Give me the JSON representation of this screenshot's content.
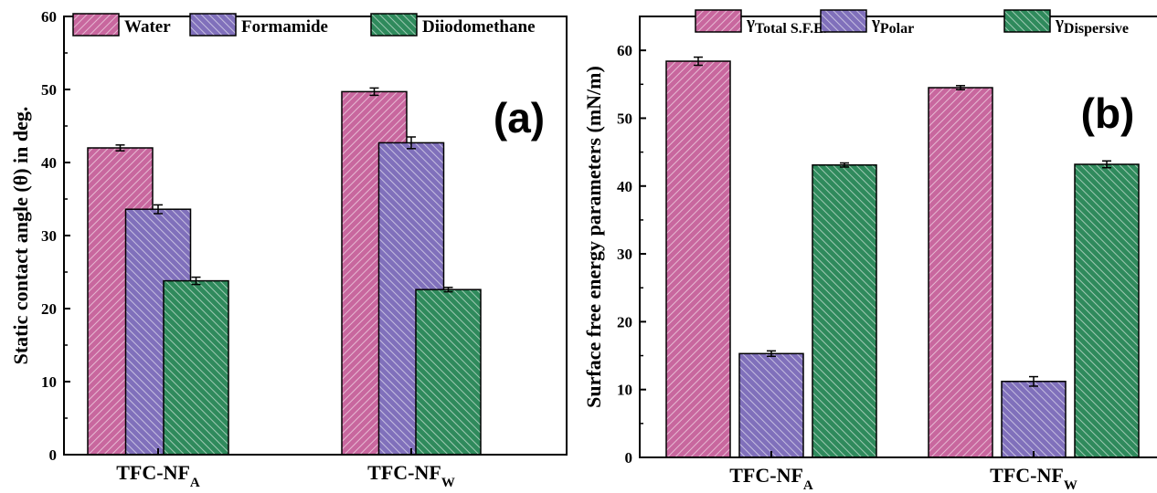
{
  "colors": {
    "water": "#c8679e",
    "formamide": "#8070bb",
    "diiodomethane": "#2f8a5c",
    "total": "#c8679e",
    "polar": "#8070bb",
    "dispersive": "#2f8a5c"
  },
  "chart_data": [
    {
      "type": "bar",
      "panel_label": "(a)",
      "ylabel": "Static contact angle (θ) in deg.",
      "ylim": [
        0,
        60
      ],
      "yticks": [
        0,
        10,
        20,
        30,
        40,
        50,
        60
      ],
      "categories": [
        {
          "base": "TFC-NF",
          "sub": "A"
        },
        {
          "base": "TFC-NF",
          "sub": "W"
        }
      ],
      "series": [
        {
          "name": "Water",
          "values": [
            42.0,
            49.7
          ],
          "errors": [
            0.4,
            0.5
          ],
          "color_key": "water"
        },
        {
          "name": "Formamide",
          "values": [
            33.6,
            42.7
          ],
          "errors": [
            0.6,
            0.8
          ],
          "color_key": "formamide"
        },
        {
          "name": "Diiodomethane",
          "values": [
            23.8,
            22.6
          ],
          "errors": [
            0.5,
            0.3
          ],
          "color_key": "diiodomethane"
        }
      ],
      "legend": "top"
    },
    {
      "type": "bar",
      "panel_label": "(b)",
      "ylabel": "Surface free energy parameters (mN/m)",
      "ylim": [
        0,
        65
      ],
      "yticks": [
        0,
        10,
        20,
        30,
        40,
        50,
        60
      ],
      "categories": [
        {
          "base": "TFC-NF",
          "sub": "A"
        },
        {
          "base": "TFC-NF",
          "sub": "W"
        }
      ],
      "series": [
        {
          "name": "γTotal S.F.E.",
          "symbol": "γ",
          "sub": "Total S.F.E.",
          "values": [
            58.4,
            54.5
          ],
          "errors": [
            0.6,
            0.3
          ],
          "color_key": "total"
        },
        {
          "name": "γPolar",
          "symbol": "γ",
          "sub": "Polar",
          "values": [
            15.3,
            11.2
          ],
          "errors": [
            0.4,
            0.7
          ],
          "color_key": "polar"
        },
        {
          "name": "γDispersive",
          "symbol": "γ",
          "sub": "Dispersive",
          "values": [
            43.1,
            43.2
          ],
          "errors": [
            0.3,
            0.5
          ],
          "color_key": "dispersive"
        }
      ],
      "legend": "top"
    }
  ]
}
